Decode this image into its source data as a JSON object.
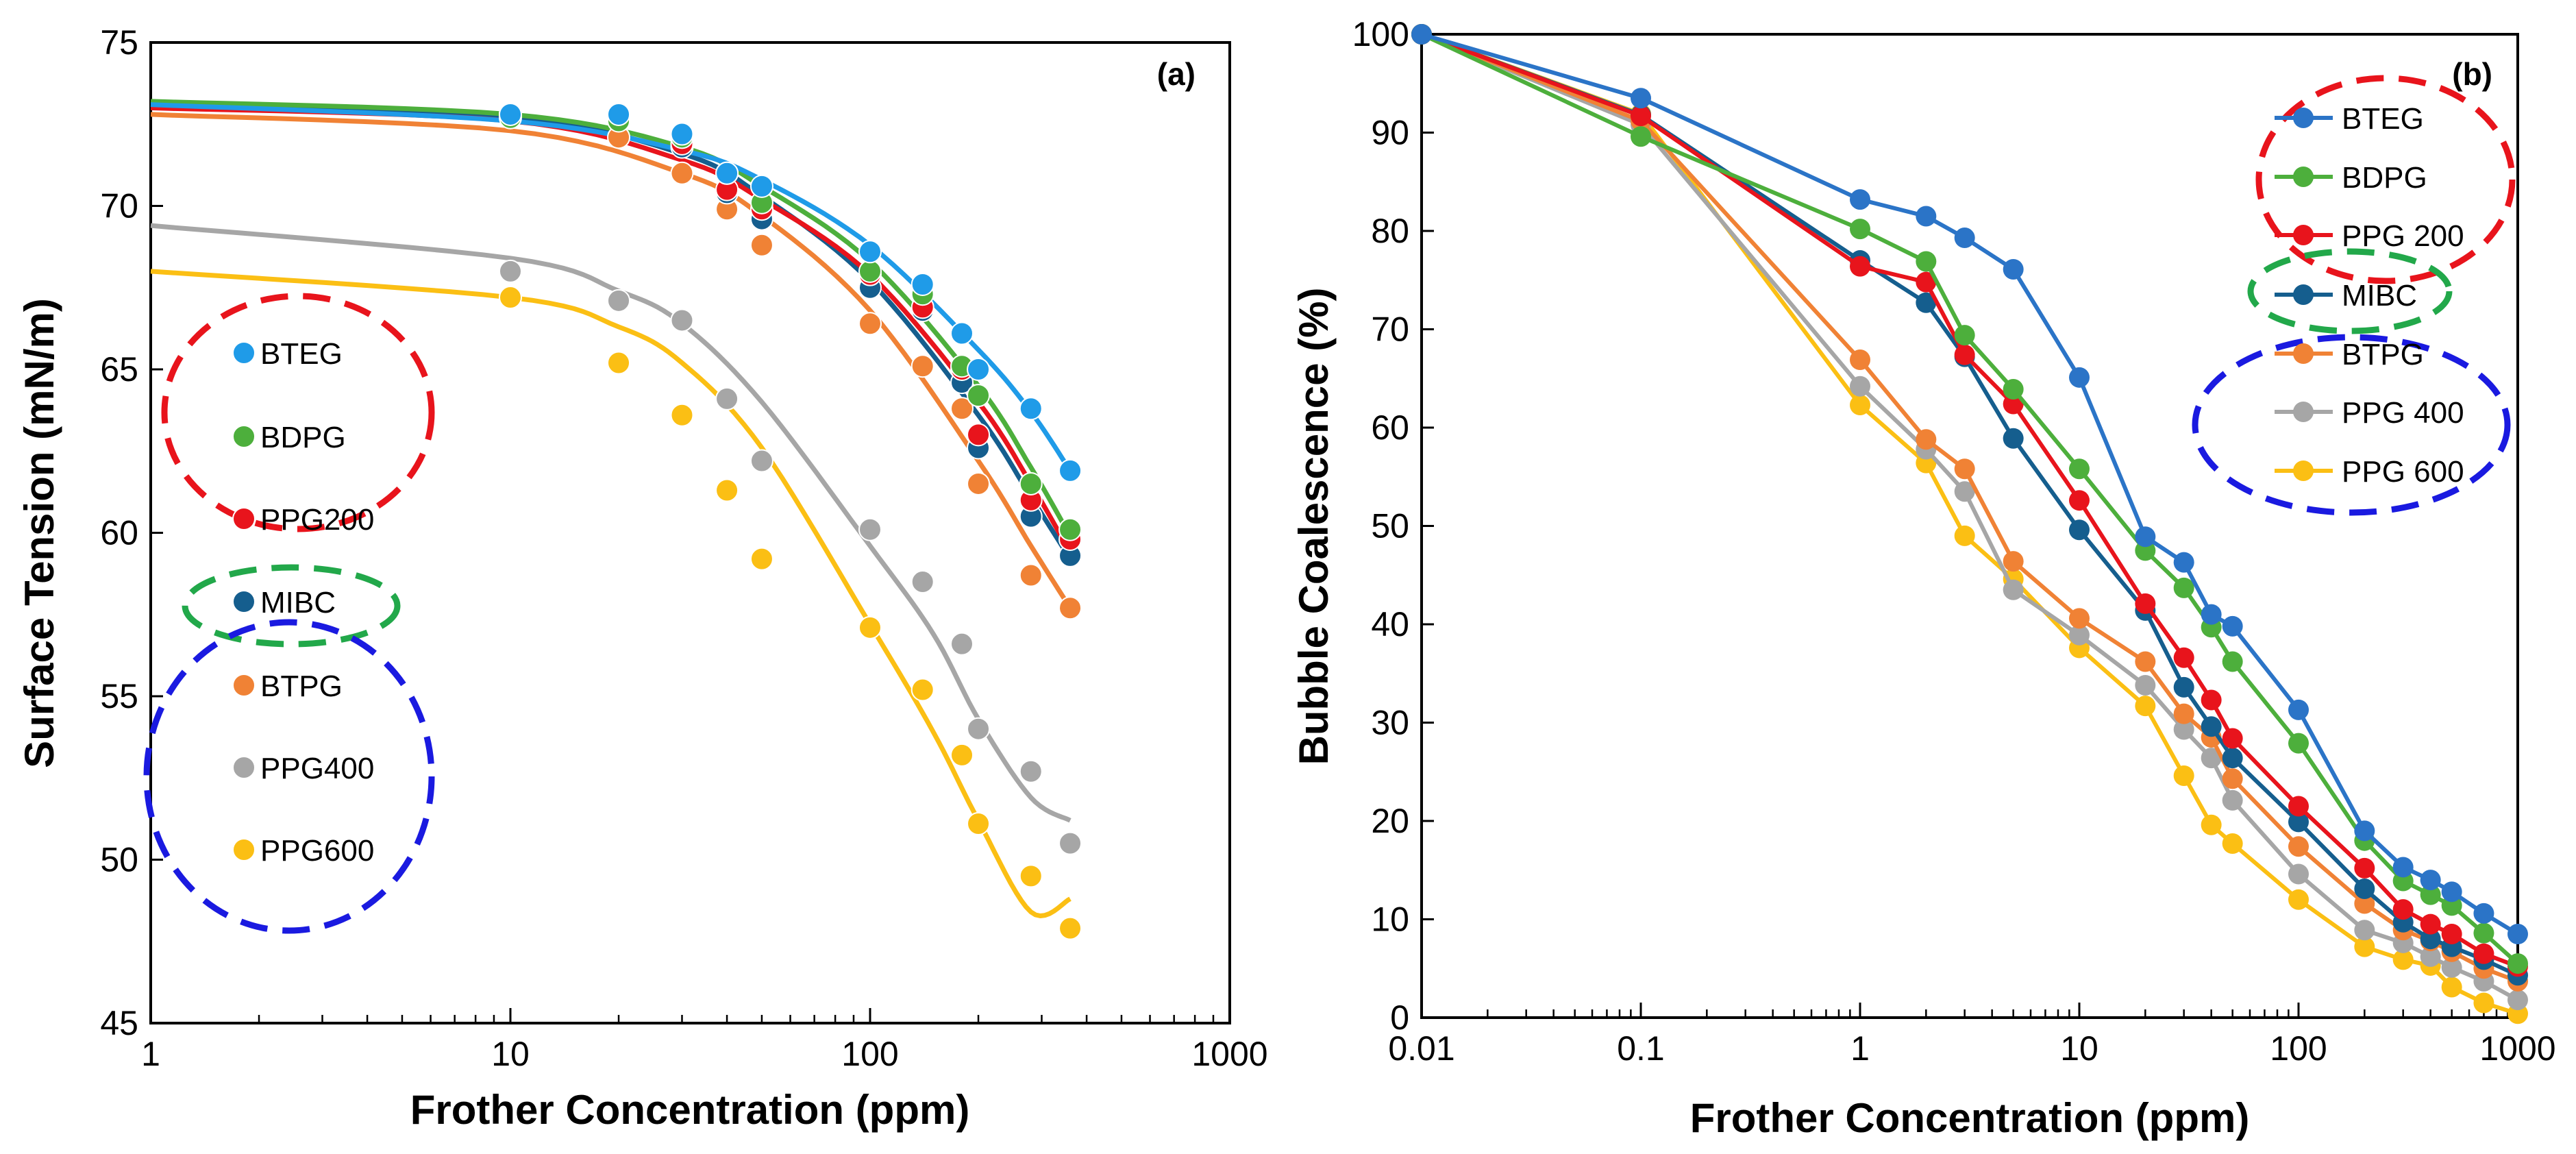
{
  "colors": {
    "BTEG": "#1f9be8",
    "BTEG_b": "#2b74c7",
    "BDPG": "#4daf3c",
    "PPG200": "#e8141c",
    "MIBC": "#155e8e",
    "BTPG": "#f08235",
    "PPG400": "#a6a6a6",
    "PPG600": "#fbbf14",
    "ellipse_red": "#e8141c",
    "ellipse_green": "#22a84a",
    "ellipse_blue": "#1a1ae0"
  },
  "chart_data": [
    {
      "id": "a",
      "type": "scatter",
      "panel_label": "(a)",
      "xlabel": "Frother Concentration (ppm)",
      "ylabel": "Surface Tension (mN/m)",
      "xscale": "log",
      "xlim": [
        1,
        1000
      ],
      "ylim": [
        45,
        75
      ],
      "xticks": [
        1,
        10,
        100,
        1000
      ],
      "xtick_labels": [
        "1",
        "10",
        "100",
        "1000"
      ],
      "yticks": [
        45,
        50,
        55,
        60,
        65,
        70,
        75
      ],
      "ytick_labels": [
        "45",
        "50",
        "55",
        "60",
        "65",
        "70",
        "75"
      ],
      "legend_position": "left",
      "series": [
        {
          "name": "BTEG",
          "color": "#1f9be8",
          "x": [
            10,
            20,
            30,
            40,
            50,
            100,
            140,
            180,
            200,
            280,
            360
          ],
          "y": [
            72.8,
            72.8,
            72.2,
            71.0,
            70.6,
            68.6,
            67.6,
            66.1,
            65.0,
            63.8,
            61.9
          ],
          "fit": [
            [
              1,
              73.1
            ],
            [
              10,
              72.6
            ],
            [
              30,
              71.7
            ],
            [
              50,
              70.8
            ],
            [
              100,
              68.8
            ],
            [
              200,
              65.6
            ],
            [
              280,
              63.7
            ],
            [
              360,
              61.9
            ]
          ]
        },
        {
          "name": "BDPG",
          "color": "#4daf3c",
          "x": [
            10,
            20,
            30,
            40,
            50,
            100,
            140,
            180,
            200,
            280,
            360
          ],
          "y": [
            72.7,
            72.6,
            72.1,
            71.0,
            70.1,
            68.0,
            67.3,
            65.1,
            64.2,
            61.5,
            60.1
          ],
          "fit": [
            [
              1,
              73.2
            ],
            [
              10,
              72.8
            ],
            [
              30,
              71.8
            ],
            [
              50,
              70.6
            ],
            [
              100,
              68.3
            ],
            [
              200,
              64.5
            ],
            [
              280,
              62.0
            ],
            [
              360,
              59.9
            ]
          ]
        },
        {
          "name": "PPG200",
          "color": "#e8141c",
          "x": [
            10,
            20,
            30,
            40,
            50,
            100,
            140,
            180,
            200,
            280,
            360
          ],
          "y": [
            72.8,
            72.7,
            71.9,
            70.5,
            69.9,
            67.9,
            66.9,
            65.0,
            63.0,
            61.0,
            59.8
          ],
          "fit": [
            [
              1,
              73.0
            ],
            [
              10,
              72.6
            ],
            [
              30,
              71.4
            ],
            [
              50,
              70.2
            ],
            [
              100,
              67.9
            ],
            [
              200,
              64.0
            ],
            [
              280,
              61.5
            ],
            [
              360,
              59.4
            ]
          ]
        },
        {
          "name": "MIBC",
          "color": "#155e8e",
          "x": [
            10,
            20,
            30,
            40,
            50,
            100,
            140,
            180,
            200,
            280,
            360
          ],
          "y": [
            72.8,
            72.7,
            71.8,
            70.4,
            69.6,
            67.5,
            66.8,
            64.6,
            62.6,
            60.5,
            59.3
          ],
          "fit": [
            [
              1,
              73.1
            ],
            [
              10,
              72.7
            ],
            [
              30,
              71.6
            ],
            [
              50,
              70.3
            ],
            [
              100,
              67.7
            ],
            [
              200,
              63.6
            ],
            [
              280,
              61.1
            ],
            [
              360,
              59.2
            ]
          ]
        },
        {
          "name": "BTPG",
          "color": "#f08235",
          "x": [
            20,
            30,
            40,
            50,
            100,
            140,
            180,
            200,
            280,
            360
          ],
          "y": [
            72.1,
            71.0,
            69.9,
            68.8,
            66.4,
            65.1,
            63.8,
            61.5,
            58.7,
            57.7
          ],
          "fit": [
            [
              1,
              72.8
            ],
            [
              10,
              72.3
            ],
            [
              30,
              71.0
            ],
            [
              50,
              69.7
            ],
            [
              100,
              66.8
            ],
            [
              200,
              62.2
            ],
            [
              280,
              59.6
            ],
            [
              360,
              57.7
            ]
          ]
        },
        {
          "name": "PPG400",
          "color": "#a6a6a6",
          "x": [
            10,
            20,
            30,
            40,
            50,
            100,
            140,
            180,
            200,
            280,
            360
          ],
          "y": [
            68.0,
            67.1,
            66.5,
            64.1,
            62.2,
            60.1,
            58.5,
            56.6,
            54.0,
            52.7,
            50.5
          ],
          "fit": [
            [
              1,
              69.4
            ],
            [
              10,
              68.4
            ],
            [
              20,
              67.4
            ],
            [
              30,
              66.4
            ],
            [
              50,
              64.0
            ],
            [
              100,
              59.6
            ],
            [
              150,
              56.9
            ],
            [
              200,
              54.3
            ],
            [
              280,
              51.9
            ],
            [
              360,
              51.2
            ]
          ]
        },
        {
          "name": "PPG600",
          "color": "#fbbf14",
          "x": [
            10,
            20,
            30,
            40,
            50,
            100,
            140,
            180,
            200,
            280,
            360
          ],
          "y": [
            67.2,
            65.2,
            63.6,
            61.3,
            59.2,
            57.1,
            55.2,
            53.2,
            51.1,
            49.5,
            47.9
          ],
          "fit": [
            [
              1,
              68.0
            ],
            [
              10,
              67.2
            ],
            [
              20,
              66.3
            ],
            [
              30,
              65.2
            ],
            [
              50,
              62.6
            ],
            [
              100,
              57.2
            ],
            [
              150,
              53.9
            ],
            [
              200,
              51.2
            ],
            [
              280,
              48.4
            ],
            [
              360,
              48.8
            ]
          ]
        }
      ],
      "legend": [
        "BTEG",
        "BDPG",
        "PPG200",
        "MIBC",
        "BTPG",
        "PPG400",
        "PPG600"
      ]
    },
    {
      "id": "b",
      "type": "line",
      "panel_label": "(b)",
      "xlabel": "Frother Concentration (ppm)",
      "ylabel": "Bubble Coalescence (%)",
      "xscale": "log",
      "xlim": [
        0.01,
        1000
      ],
      "ylim": [
        0,
        100
      ],
      "xticks": [
        0.01,
        0.1,
        1,
        10,
        100,
        1000
      ],
      "xtick_labels": [
        "0.01",
        "0.1",
        "1",
        "10",
        "100",
        "1000"
      ],
      "yticks": [
        0,
        10,
        20,
        30,
        40,
        50,
        60,
        70,
        80,
        90,
        100
      ],
      "ytick_labels": [
        "0",
        "10",
        "20",
        "30",
        "40",
        "50",
        "60",
        "70",
        "80",
        "90",
        "100"
      ],
      "legend_position": "top-right",
      "x": [
        0.01,
        0.1,
        1,
        2,
        3,
        5,
        10,
        20,
        30,
        40,
        50,
        100,
        200,
        300,
        400,
        500,
        700,
        1000
      ],
      "series": [
        {
          "name": "BTEG",
          "color": "#2b74c7",
          "values": [
            100,
            93.5,
            83.2,
            81.5,
            79.3,
            76.1,
            65.1,
            48.9,
            46.3,
            41.0,
            39.8,
            31.3,
            19.0,
            15.3,
            14.0,
            12.8,
            10.6,
            8.5
          ]
        },
        {
          "name": "BDPG",
          "color": "#4daf3c",
          "values": [
            100,
            89.6,
            80.2,
            76.9,
            69.4,
            63.9,
            55.8,
            47.5,
            43.7,
            39.7,
            36.2,
            27.9,
            18.0,
            13.9,
            12.5,
            11.4,
            8.6,
            5.5
          ]
        },
        {
          "name": "PPG 200",
          "color": "#e8141c",
          "values": [
            100,
            91.7,
            76.4,
            74.8,
            67.4,
            62.4,
            52.6,
            42.1,
            36.6,
            32.3,
            28.4,
            21.5,
            15.2,
            11.0,
            9.5,
            8.5,
            6.5,
            5.2
          ]
        },
        {
          "name": "MIBC",
          "color": "#155e8e",
          "values": [
            100,
            91.8,
            77.0,
            72.7,
            67.2,
            58.9,
            49.6,
            41.4,
            33.6,
            29.6,
            26.4,
            19.9,
            13.1,
            9.7,
            8.0,
            7.2,
            5.9,
            4.3
          ]
        },
        {
          "name": "BTPG",
          "color": "#f08235",
          "values": [
            100,
            91.2,
            66.9,
            58.8,
            55.8,
            46.4,
            40.6,
            36.2,
            30.9,
            28.5,
            24.3,
            17.4,
            11.6,
            8.9,
            7.8,
            6.7,
            5.0,
            3.7
          ]
        },
        {
          "name": "PPG 400",
          "color": "#a6a6a6",
          "values": [
            100,
            90.8,
            64.2,
            57.8,
            53.5,
            43.5,
            38.9,
            33.8,
            29.3,
            26.4,
            22.1,
            14.6,
            8.9,
            7.6,
            6.2,
            5.1,
            3.7,
            1.8
          ]
        },
        {
          "name": "PPG 600",
          "color": "#fbbf14",
          "values": [
            100,
            91.9,
            62.3,
            56.4,
            49.0,
            44.6,
            37.6,
            31.7,
            24.6,
            19.6,
            17.7,
            12.0,
            7.2,
            5.9,
            5.3,
            3.1,
            1.5,
            0.4
          ]
        }
      ],
      "legend": [
        "BTEG",
        "BDPG",
        "PPG 200",
        "MIBC",
        "BTPG",
        "PPG 400",
        "PPG 600"
      ]
    }
  ]
}
